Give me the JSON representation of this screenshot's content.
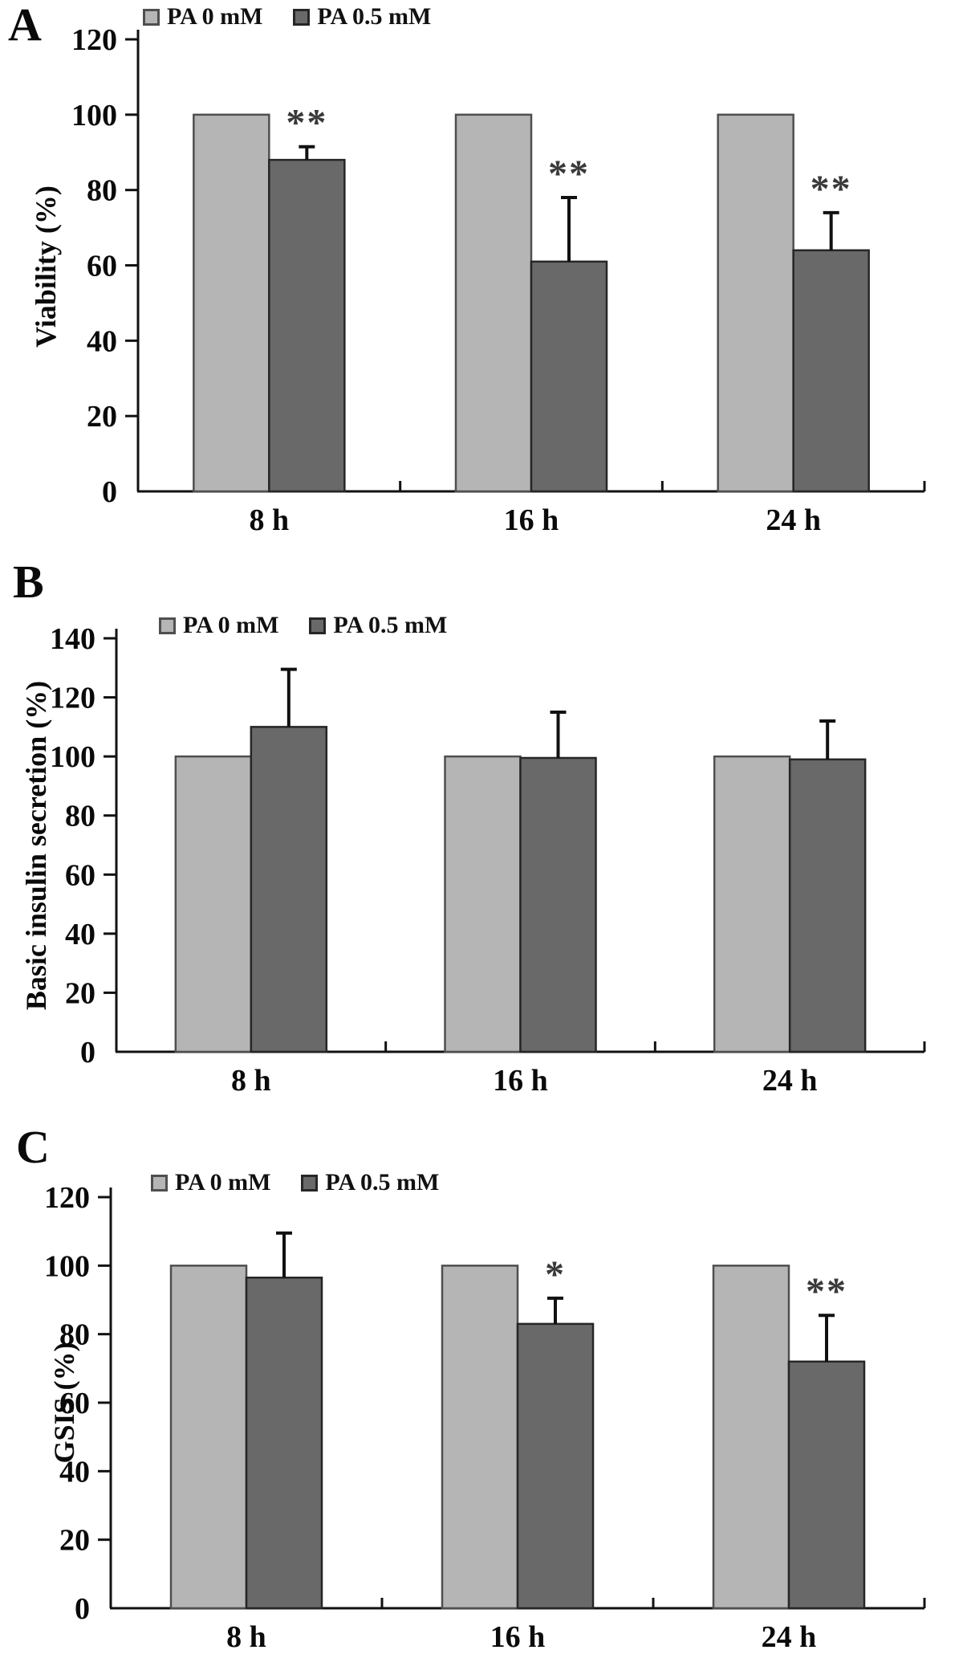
{
  "colors": {
    "series_fill": [
      "#b5b5b5",
      "#696969"
    ],
    "series_stroke": [
      "#4f4f4f",
      "#262626"
    ],
    "axis": "#111111",
    "error_bar": "#111111",
    "significance": "#3a3a3a",
    "background": "#ffffff"
  },
  "chart_data": [
    {
      "type": "bar",
      "panel_label": "A",
      "ylabel": "Viability (%)",
      "ylim": [
        0,
        120
      ],
      "ytick_step": 20,
      "grid": false,
      "legend_position": "top",
      "categories": [
        "8 h",
        "16 h",
        "24 h"
      ],
      "series": [
        {
          "name": "PA 0 mM",
          "values": [
            100,
            100,
            100
          ],
          "errors": [
            0,
            0,
            0
          ]
        },
        {
          "name": "PA 0.5 mM",
          "values": [
            88,
            61,
            64
          ],
          "errors": [
            3.5,
            17,
            10
          ]
        }
      ],
      "significance": [
        "**",
        "**",
        "**"
      ]
    },
    {
      "type": "bar",
      "panel_label": "B",
      "ylabel": "Basic insulin secretion (%)",
      "ylim": [
        0,
        140
      ],
      "ytick_step": 20,
      "grid": false,
      "legend_position": "top",
      "categories": [
        "8 h",
        "16 h",
        "24 h"
      ],
      "series": [
        {
          "name": "PA 0 mM",
          "values": [
            100,
            100,
            100
          ],
          "errors": [
            0,
            0,
            0
          ]
        },
        {
          "name": "PA 0.5 mM",
          "values": [
            110,
            99.5,
            99
          ],
          "errors": [
            19.5,
            15.5,
            13
          ]
        }
      ],
      "significance": [
        "",
        "",
        ""
      ]
    },
    {
      "type": "bar",
      "panel_label": "C",
      "ylabel": "GSIS (%)",
      "ylim": [
        0,
        120
      ],
      "ytick_step": 20,
      "grid": false,
      "legend_position": "top",
      "categories": [
        "8 h",
        "16 h",
        "24 h"
      ],
      "series": [
        {
          "name": "PA 0 mM",
          "values": [
            100,
            100,
            100
          ],
          "errors": [
            0,
            0,
            0
          ]
        },
        {
          "name": "PA 0.5 mM",
          "values": [
            96.5,
            83,
            72
          ],
          "errors": [
            13,
            7.5,
            13.5
          ]
        }
      ],
      "significance": [
        "",
        "*",
        "**"
      ]
    }
  ]
}
